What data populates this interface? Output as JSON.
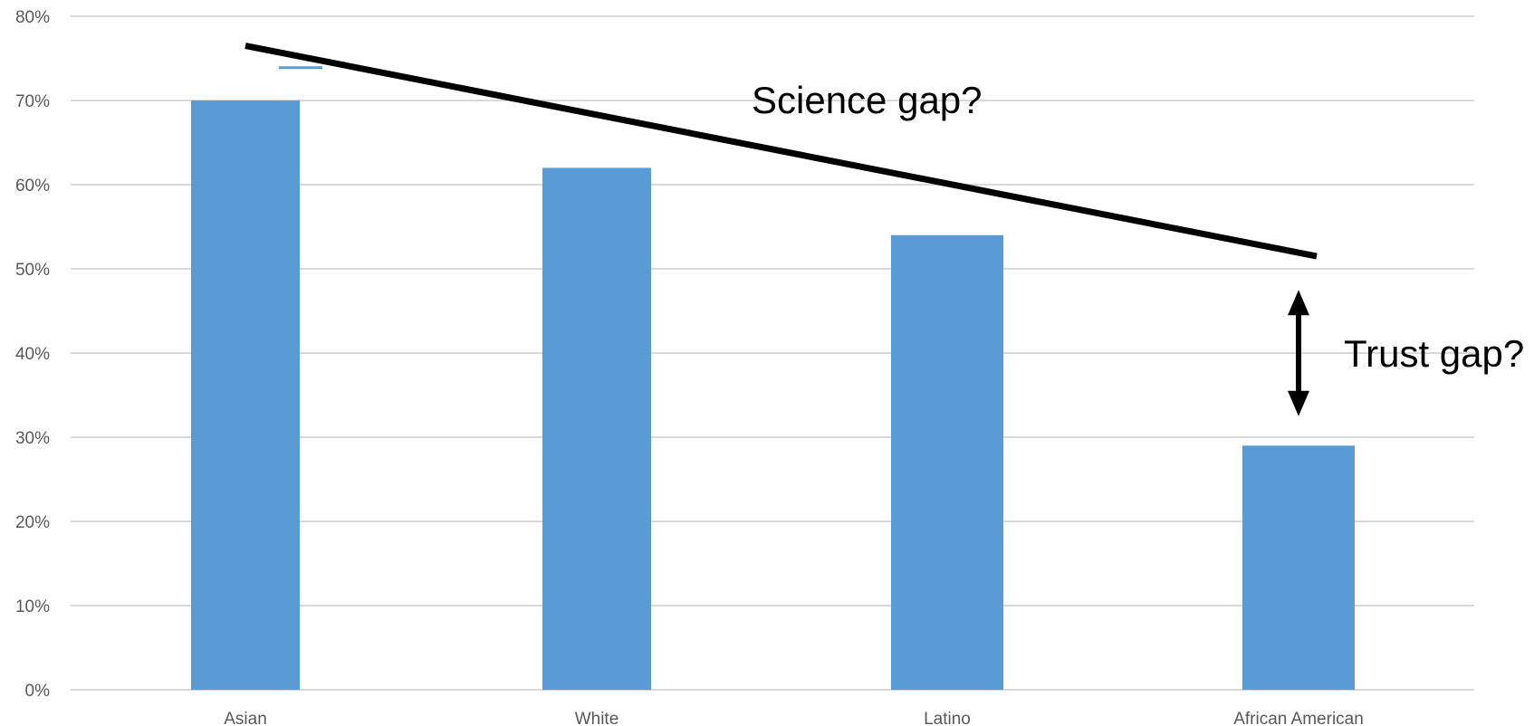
{
  "chart_data": {
    "type": "bar",
    "categories": [
      "Asian",
      "White",
      "Latino",
      "African American"
    ],
    "values": [
      70,
      62,
      54,
      29
    ],
    "ylim": [
      0,
      80
    ],
    "yticks": [
      0,
      10,
      20,
      30,
      40,
      50,
      60,
      70,
      80
    ],
    "ytick_labels": [
      "0%",
      "10%",
      "20%",
      "30%",
      "40%",
      "50%",
      "60%",
      "70%",
      "80%"
    ],
    "grid": true,
    "bar_color": "#5B9BD5",
    "grid_color": "#D9D9D9",
    "annotations": {
      "science_gap": "Science gap?",
      "trust_gap": "Trust gap?",
      "trend_line": {
        "from": {
          "category": "Asian",
          "y": 76.5
        },
        "to": {
          "category": "African American",
          "y": 51.5
        }
      },
      "error_cap": {
        "category": "Asian",
        "y": 73.9
      },
      "double_arrow": {
        "category": "African American",
        "from_y": 47.5,
        "to_y": 32.5
      }
    }
  }
}
